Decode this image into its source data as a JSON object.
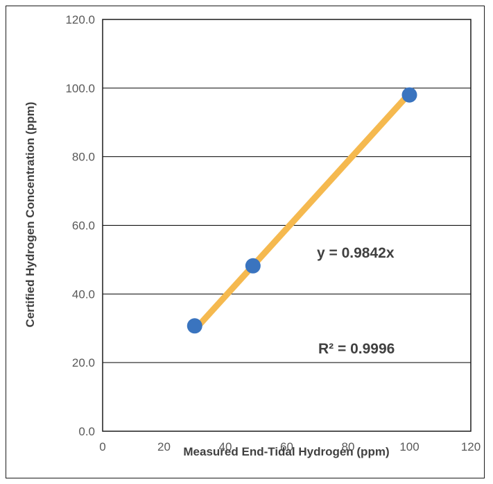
{
  "chart_data": {
    "type": "scatter",
    "title": "",
    "xlabel": "Measured End-Tidal Hydrogen (ppm)",
    "ylabel": "Certified Hydrogen Concentration (ppm)",
    "xlim": [
      0,
      120
    ],
    "ylim": [
      0,
      120
    ],
    "x_ticks": [
      "0",
      "20",
      "40",
      "60",
      "80",
      "100",
      "120"
    ],
    "y_ticks": [
      "0.0",
      "20.0",
      "40.0",
      "60.0",
      "80.0",
      "100.0",
      "120.0"
    ],
    "grid": {
      "horizontal": true,
      "vertical": false
    },
    "series": [
      {
        "x": [
          30.0,
          49.0,
          100.0
        ],
        "y": [
          30.7,
          48.2,
          98.0
        ]
      }
    ],
    "trendline": {
      "slope": 0.9842,
      "intercept": 0,
      "x_range": [
        30.0,
        100.0
      ]
    },
    "annotations": [
      "y = 0.9842x",
      "R² = 0.9996"
    ],
    "colors": {
      "marker": "#3a74bf",
      "trendline": "#f5b94f",
      "gridline": "#000000",
      "plot_border": "#1a1a1a"
    }
  }
}
